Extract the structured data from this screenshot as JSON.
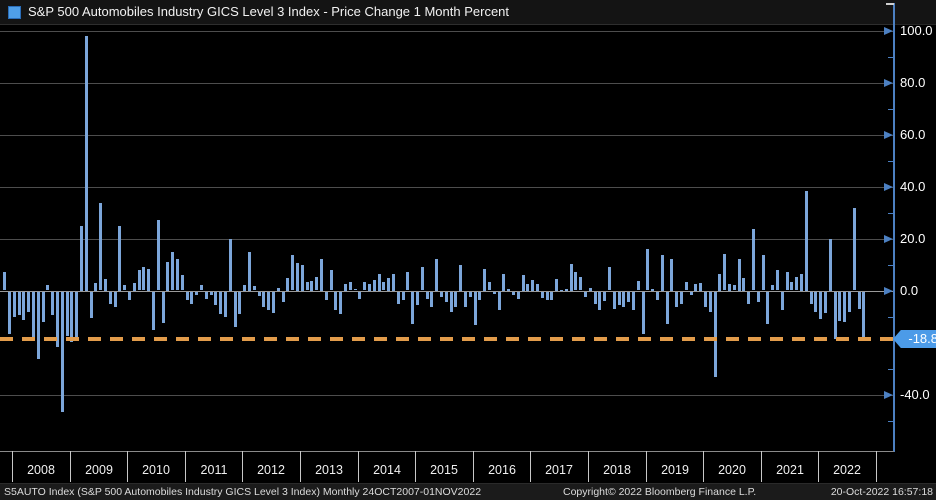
{
  "header": {
    "title": "S&P 500 Automobiles Industry GICS Level 3 Index - Price Change 1 Month Percent",
    "legend_color": "#4f9fe8"
  },
  "statusbar": {
    "left": "S5AUTO Index (S&P 500 Automobiles Industry GICS Level 3 Index)  Monthly 24OCT2007-01NOV2022",
    "copyright": "Copyright© 2022 Bloomberg Finance L.P.",
    "datetime": "20-Oct-2022 16:57:18"
  },
  "chart_data": {
    "type": "bar",
    "title": "S&P 500 Automobiles Industry GICS Level 3 Index - Price Change 1 Month Percent",
    "ylabel": "Price Change 1 Month Percent",
    "ylim": [
      -62,
      102
    ],
    "grid": "horizontal",
    "bar_color": "#7ca6da",
    "last_line_color": "#e29c4b",
    "start_month": "2007-11",
    "end_month": "2022-10",
    "y_ticks": [
      {
        "v": 100,
        "label": "100.0"
      },
      {
        "v": 80,
        "label": "80.0"
      },
      {
        "v": 60,
        "label": "60.0"
      },
      {
        "v": 40,
        "label": "40.0"
      },
      {
        "v": 20,
        "label": "20.0"
      },
      {
        "v": 0,
        "label": "0.0"
      },
      {
        "v": -40,
        "label": "-40.0"
      }
    ],
    "y_minor_ticks": [
      90,
      70,
      50,
      30,
      10,
      -10,
      -30,
      -50
    ],
    "last_value": {
      "v": -18.8,
      "label": "-18.8"
    },
    "year_labels": [
      "2008",
      "2009",
      "2010",
      "2011",
      "2012",
      "2013",
      "2014",
      "2015",
      "2016",
      "2017",
      "2018",
      "2019",
      "2020",
      "2021",
      "2022"
    ],
    "values": [
      7.0,
      -16.3,
      -9.6,
      -9.0,
      -10.9,
      -7.7,
      -17.3,
      -25.6,
      -11.5,
      2.0,
      -9.0,
      -21.0,
      -46.0,
      -17.0,
      -19.2,
      -18.6,
      25.0,
      98.0,
      -10.0,
      3.0,
      33.6,
      4.5,
      -4.5,
      -5.8,
      25.0,
      2.0,
      -3.0,
      3.0,
      7.7,
      9.0,
      8.3,
      -14.5,
      27.0,
      -12.0,
      11.0,
      14.7,
      12.0,
      5.8,
      -3.2,
      -4.5,
      -1.0,
      2.0,
      -2.5,
      -1.3,
      -5.0,
      -8.3,
      -9.6,
      19.9,
      -13.5,
      -8.3,
      2.3,
      15.0,
      1.7,
      -1.5,
      -5.8,
      -7.0,
      -8.0,
      1.0,
      -3.8,
      5.0,
      13.5,
      10.6,
      9.9,
      3.2,
      3.8,
      5.1,
      12.2,
      -3.2,
      7.7,
      -7.0,
      -8.3,
      2.6,
      3.2,
      0.5,
      -2.6,
      3.2,
      2.6,
      4.2,
      6.4,
      3.2,
      5.0,
      6.4,
      -4.5,
      -2.9,
      7.0,
      -12.2,
      -5.1,
      9.0,
      -2.6,
      -5.8,
      12.2,
      -2.0,
      -4.0,
      -7.7,
      -5.8,
      10.0,
      -5.8,
      -2.0,
      -12.8,
      -3.2,
      8.3,
      3.2,
      -0.6,
      -7.0,
      6.4,
      0.6,
      -1.3,
      -2.6,
      6.0,
      2.6,
      4.2,
      2.6,
      -2.2,
      -3.2,
      -2.9,
      4.5,
      0.3,
      0.6,
      10.3,
      7.0,
      5.1,
      -1.9,
      1.0,
      -4.5,
      -7.0,
      -3.5,
      9.0,
      -6.4,
      -5.1,
      -5.8,
      -3.8,
      -7.0,
      3.5,
      -16.0,
      15.8,
      0.6,
      -3.2,
      13.7,
      -12.2,
      12.2,
      -5.8,
      -4.5,
      3.2,
      -1.3,
      2.6,
      3.0,
      -5.8,
      -7.7,
      -32.7,
      6.4,
      14.0,
      2.6,
      2.0,
      12.2,
      5.0,
      -4.5,
      23.5,
      -3.8,
      13.5,
      -12.2,
      2.0,
      7.7,
      -6.8,
      7.0,
      3.2,
      5.1,
      6.4,
      38.4,
      -4.5,
      -7.7,
      -10.3,
      -8.0,
      20.0,
      -18.0,
      -11.0,
      -11.6,
      -7.5,
      31.6,
      -6.5,
      -18.8
    ]
  }
}
